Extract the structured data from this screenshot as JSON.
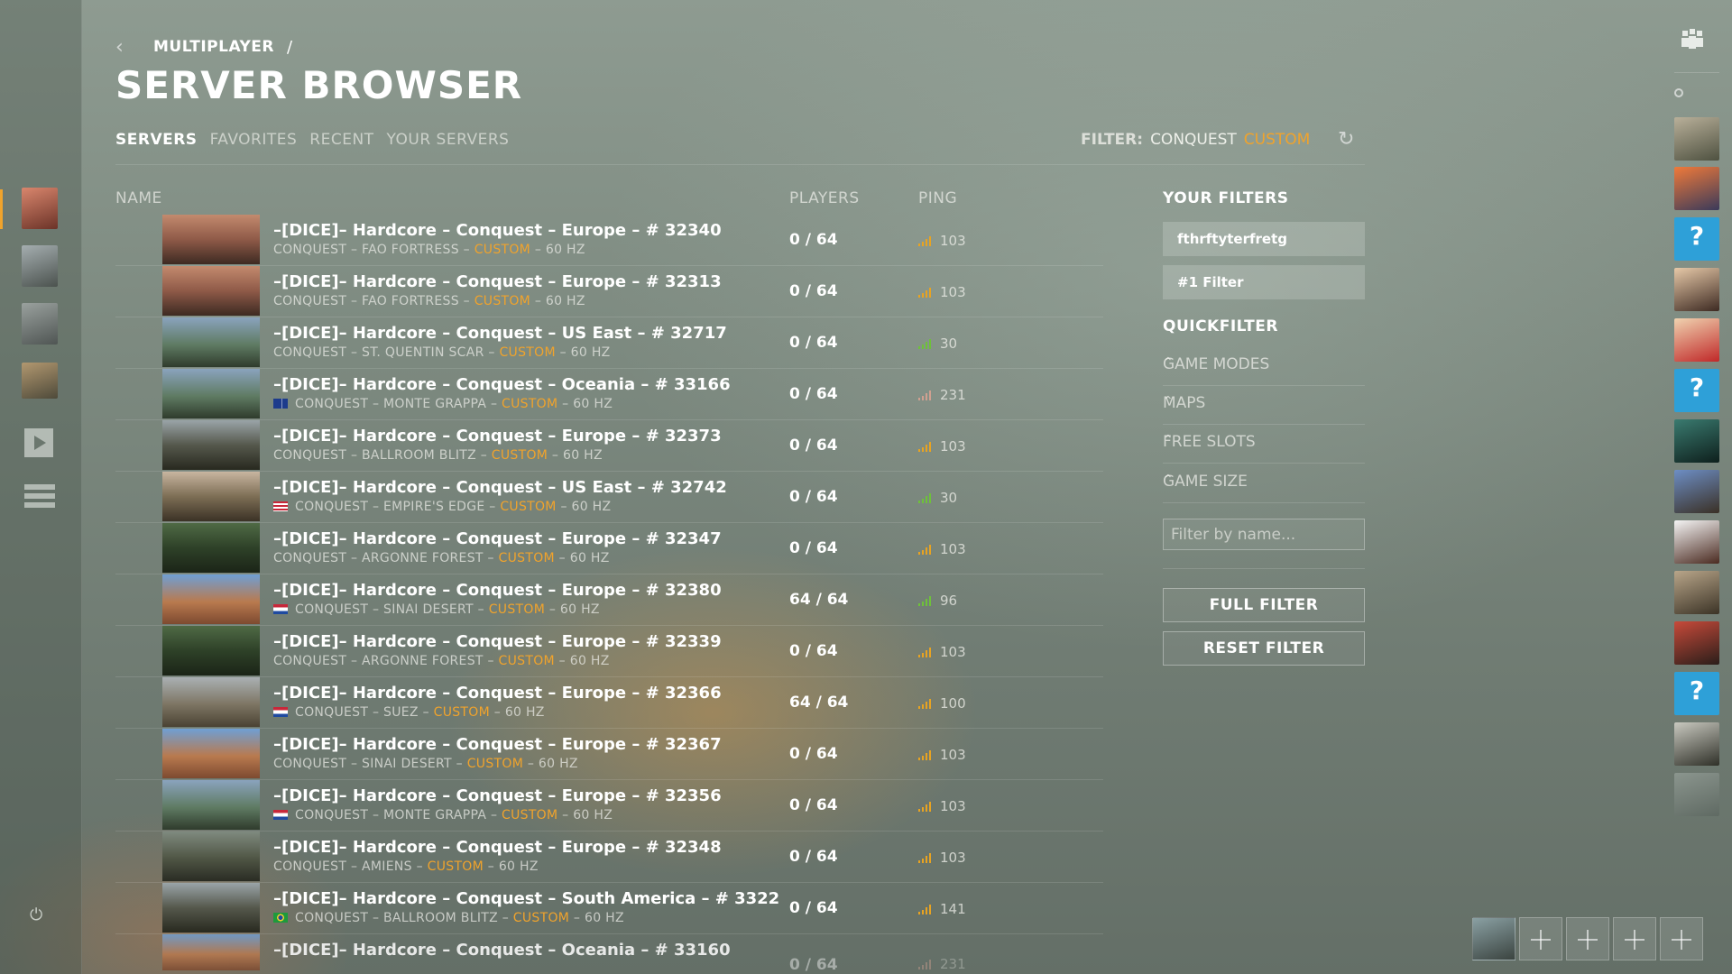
{
  "breadcrumb": {
    "parent": "MULTIPLAYER",
    "separator": "/"
  },
  "page_title": "SERVER BROWSER",
  "tabs": [
    {
      "label": "SERVERS",
      "active": true
    },
    {
      "label": "FAVORITES",
      "active": false
    },
    {
      "label": "RECENT",
      "active": false
    },
    {
      "label": "YOUR SERVERS",
      "active": false
    }
  ],
  "filter_summary": {
    "label": "FILTER:",
    "mode": "CONQUEST",
    "custom": "CUSTOM"
  },
  "columns": {
    "name": "NAME",
    "players": "PLAYERS",
    "ping": "PING"
  },
  "servers": [
    {
      "name": "–[DICE]– Hardcore – Conquest – Europe – # 32340",
      "mode": "CONQUEST",
      "map": "FAO FORTRESS",
      "tag": "CUSTOM",
      "rate": "60 HZ",
      "players": "0 / 64",
      "ping": "103",
      "signal": "yellow",
      "flag": ""
    },
    {
      "name": "–[DICE]– Hardcore – Conquest – Europe – # 32313",
      "mode": "CONQUEST",
      "map": "FAO FORTRESS",
      "tag": "CUSTOM",
      "rate": "60 HZ",
      "players": "0 / 64",
      "ping": "103",
      "signal": "yellow",
      "flag": ""
    },
    {
      "name": "–[DICE]– Hardcore – Conquest – US East – # 32717",
      "mode": "CONQUEST",
      "map": "ST. QUENTIN SCAR",
      "tag": "CUSTOM",
      "rate": "60 HZ",
      "players": "0 / 64",
      "ping": "30",
      "signal": "green",
      "flag": ""
    },
    {
      "name": "–[DICE]– Hardcore – Conquest – Oceania – # 33166",
      "mode": "CONQUEST",
      "map": "MONTE GRAPPA",
      "tag": "CUSTOM",
      "rate": "60 HZ",
      "players": "0 / 64",
      "ping": "231",
      "signal": "red",
      "flag": "au"
    },
    {
      "name": "–[DICE]– Hardcore – Conquest – Europe – # 32373",
      "mode": "CONQUEST",
      "map": "BALLROOM BLITZ",
      "tag": "CUSTOM",
      "rate": "60 HZ",
      "players": "0 / 64",
      "ping": "103",
      "signal": "yellow",
      "flag": ""
    },
    {
      "name": "–[DICE]– Hardcore – Conquest – US East – # 32742",
      "mode": "CONQUEST",
      "map": "EMPIRE'S EDGE",
      "tag": "CUSTOM",
      "rate": "60 HZ",
      "players": "0 / 64",
      "ping": "30",
      "signal": "green",
      "flag": "us"
    },
    {
      "name": "–[DICE]– Hardcore – Conquest – Europe – # 32347",
      "mode": "CONQUEST",
      "map": "ARGONNE FOREST",
      "tag": "CUSTOM",
      "rate": "60 HZ",
      "players": "0 / 64",
      "ping": "103",
      "signal": "yellow",
      "flag": ""
    },
    {
      "name": "–[DICE]– Hardcore – Conquest – Europe – # 32380",
      "mode": "CONQUEST",
      "map": "SINAI DESERT",
      "tag": "CUSTOM",
      "rate": "60 HZ",
      "players": "64 / 64",
      "ping": "96",
      "signal": "green",
      "flag": "nl"
    },
    {
      "name": "–[DICE]– Hardcore – Conquest – Europe – # 32339",
      "mode": "CONQUEST",
      "map": "ARGONNE FOREST",
      "tag": "CUSTOM",
      "rate": "60 HZ",
      "players": "0 / 64",
      "ping": "103",
      "signal": "yellow",
      "flag": ""
    },
    {
      "name": "–[DICE]– Hardcore – Conquest – Europe – # 32366",
      "mode": "CONQUEST",
      "map": "SUEZ",
      "tag": "CUSTOM",
      "rate": "60 HZ",
      "players": "64 / 64",
      "ping": "100",
      "signal": "yellow",
      "flag": "nl"
    },
    {
      "name": "–[DICE]– Hardcore – Conquest – Europe – # 32367",
      "mode": "CONQUEST",
      "map": "SINAI DESERT",
      "tag": "CUSTOM",
      "rate": "60 HZ",
      "players": "0 / 64",
      "ping": "103",
      "signal": "yellow",
      "flag": ""
    },
    {
      "name": "–[DICE]– Hardcore – Conquest – Europe – # 32356",
      "mode": "CONQUEST",
      "map": "MONTE GRAPPA",
      "tag": "CUSTOM",
      "rate": "60 HZ",
      "players": "0 / 64",
      "ping": "103",
      "signal": "yellow",
      "flag": "nl"
    },
    {
      "name": "–[DICE]– Hardcore – Conquest – Europe – # 32348",
      "mode": "CONQUEST",
      "map": "AMIENS",
      "tag": "CUSTOM",
      "rate": "60 HZ",
      "players": "0 / 64",
      "ping": "103",
      "signal": "yellow",
      "flag": ""
    },
    {
      "name": "–[DICE]– Hardcore – Conquest – South America – # 3322",
      "mode": "CONQUEST",
      "map": "BALLROOM BLITZ",
      "tag": "CUSTOM",
      "rate": "60 HZ",
      "players": "0 / 64",
      "ping": "141",
      "signal": "yellow",
      "flag": "br"
    },
    {
      "name": "–[DICE]– Hardcore – Conquest – Oceania – # 33160",
      "mode": "",
      "map": "",
      "tag": "",
      "rate": "",
      "players": "0 / 64",
      "ping": "231",
      "signal": "red",
      "flag": ""
    }
  ],
  "your_filters": {
    "title": "YOUR FILTERS",
    "items": [
      "fthrftyterfretg",
      "#1 Filter"
    ]
  },
  "quickfilter": {
    "title": "QUICKFILTER",
    "items": [
      "GAME MODES",
      "MAPS",
      "FREE SLOTS",
      "GAME SIZE"
    ]
  },
  "search": {
    "placeholder": "Filter by name..."
  },
  "buttons": {
    "full_filter": "FULL FILTER",
    "reset_filter": "RESET FILTER"
  },
  "icons": {
    "back": "chevron-left-icon",
    "refresh": "refresh-icon",
    "power": "power-icon",
    "squad": "squad-icon"
  },
  "colors": {
    "accent": "#f0a32c",
    "ping_good": "#6ec13a",
    "ping_ok": "#e8a321"
  }
}
